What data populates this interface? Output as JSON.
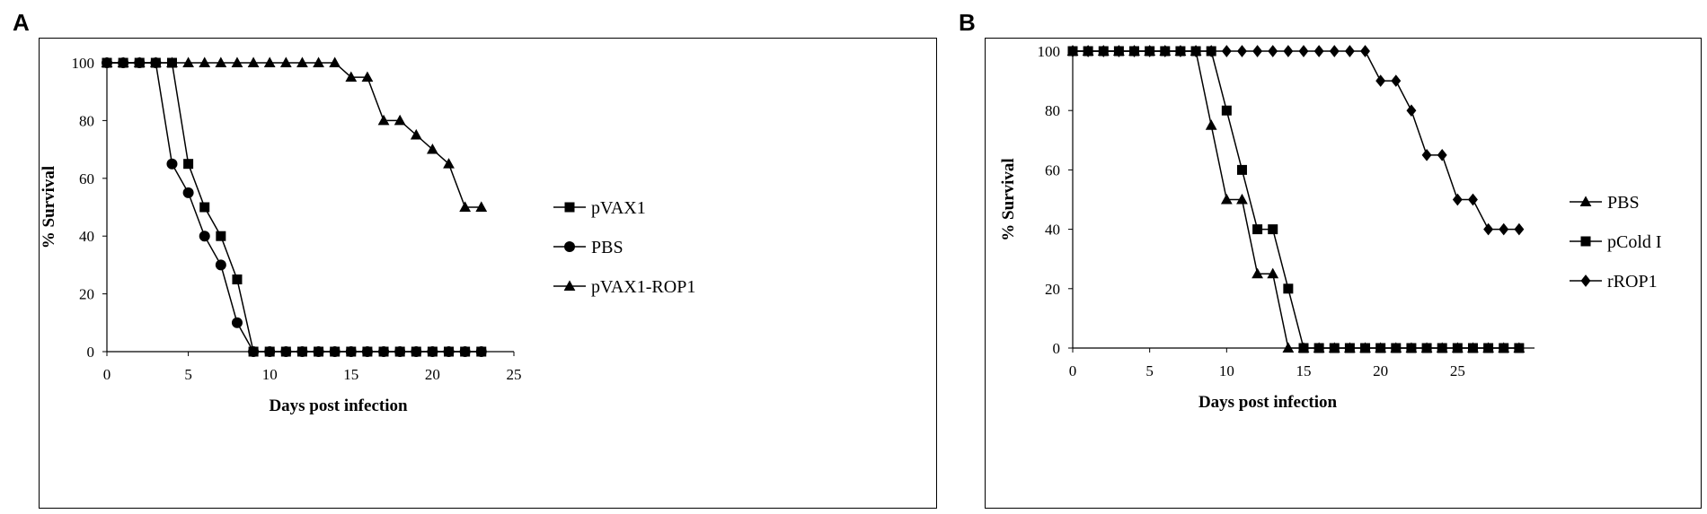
{
  "panels": {
    "a": {
      "letter": "A"
    },
    "b": {
      "letter": "B"
    }
  },
  "chart_data": [
    {
      "type": "line",
      "panel": "A",
      "title": "",
      "xlabel": "Days post infection",
      "ylabel": "% Survival",
      "xlim": [
        0,
        25
      ],
      "ylim": [
        0,
        100
      ],
      "xticks": [
        0,
        5,
        10,
        15,
        20,
        25
      ],
      "yticks": [
        0,
        20,
        40,
        60,
        80,
        100
      ],
      "grid": false,
      "legend_position": "right",
      "series": [
        {
          "name": "pVAX1",
          "marker": "square",
          "x": [
            0,
            1,
            2,
            3,
            4,
            5,
            6,
            7,
            8,
            9,
            10,
            11,
            12,
            13,
            14,
            15,
            16,
            17,
            18,
            19,
            20,
            21,
            22,
            23
          ],
          "y": [
            100,
            100,
            100,
            100,
            100,
            65,
            50,
            40,
            25,
            0,
            0,
            0,
            0,
            0,
            0,
            0,
            0,
            0,
            0,
            0,
            0,
            0,
            0,
            0
          ]
        },
        {
          "name": "PBS",
          "marker": "circle",
          "x": [
            0,
            1,
            2,
            3,
            4,
            5,
            6,
            7,
            8,
            9,
            10,
            11,
            12,
            13,
            14,
            15,
            16,
            17,
            18,
            19,
            20,
            21,
            22,
            23
          ],
          "y": [
            100,
            100,
            100,
            100,
            65,
            55,
            40,
            30,
            10,
            0,
            0,
            0,
            0,
            0,
            0,
            0,
            0,
            0,
            0,
            0,
            0,
            0,
            0,
            0
          ]
        },
        {
          "name": "pVAX1-ROP1",
          "marker": "triangle",
          "x": [
            0,
            1,
            2,
            3,
            4,
            5,
            6,
            7,
            8,
            9,
            10,
            11,
            12,
            13,
            14,
            15,
            16,
            17,
            18,
            19,
            20,
            21,
            22,
            23
          ],
          "y": [
            100,
            100,
            100,
            100,
            100,
            100,
            100,
            100,
            100,
            100,
            100,
            100,
            100,
            100,
            100,
            95,
            95,
            80,
            80,
            75,
            70,
            65,
            50,
            50
          ]
        }
      ]
    },
    {
      "type": "line",
      "panel": "B",
      "title": "",
      "xlabel": "Days post infection",
      "ylabel": "% Survival",
      "xlim": [
        0,
        30
      ],
      "ylim": [
        0,
        100
      ],
      "xticks": [
        0,
        5,
        10,
        15,
        20,
        25
      ],
      "yticks": [
        0,
        20,
        40,
        60,
        80,
        100
      ],
      "grid": false,
      "legend_position": "right",
      "series": [
        {
          "name": "PBS",
          "marker": "triangle",
          "x": [
            0,
            1,
            2,
            3,
            4,
            5,
            6,
            7,
            8,
            9,
            10,
            11,
            12,
            13,
            14,
            15,
            16,
            17,
            18,
            19,
            20,
            21,
            22,
            23,
            24,
            25,
            26,
            27,
            28,
            29
          ],
          "y": [
            100,
            100,
            100,
            100,
            100,
            100,
            100,
            100,
            100,
            75,
            50,
            50,
            25,
            25,
            0,
            0,
            0,
            0,
            0,
            0,
            0,
            0,
            0,
            0,
            0,
            0,
            0,
            0,
            0,
            0
          ]
        },
        {
          "name": "pCold I",
          "marker": "square",
          "x": [
            0,
            1,
            2,
            3,
            4,
            5,
            6,
            7,
            8,
            9,
            10,
            11,
            12,
            13,
            14,
            15,
            16,
            17,
            18,
            19,
            20,
            21,
            22,
            23,
            24,
            25,
            26,
            27,
            28,
            29
          ],
          "y": [
            100,
            100,
            100,
            100,
            100,
            100,
            100,
            100,
            100,
            100,
            80,
            60,
            40,
            40,
            20,
            0,
            0,
            0,
            0,
            0,
            0,
            0,
            0,
            0,
            0,
            0,
            0,
            0,
            0,
            0
          ]
        },
        {
          "name": "rROP1",
          "marker": "diamond",
          "x": [
            0,
            1,
            2,
            3,
            4,
            5,
            6,
            7,
            8,
            9,
            10,
            11,
            12,
            13,
            14,
            15,
            16,
            17,
            18,
            19,
            20,
            21,
            22,
            23,
            24,
            25,
            26,
            27,
            28,
            29
          ],
          "y": [
            100,
            100,
            100,
            100,
            100,
            100,
            100,
            100,
            100,
            100,
            100,
            100,
            100,
            100,
            100,
            100,
            100,
            100,
            100,
            100,
            90,
            90,
            80,
            65,
            65,
            50,
            50,
            40,
            40,
            40
          ]
        }
      ]
    }
  ]
}
